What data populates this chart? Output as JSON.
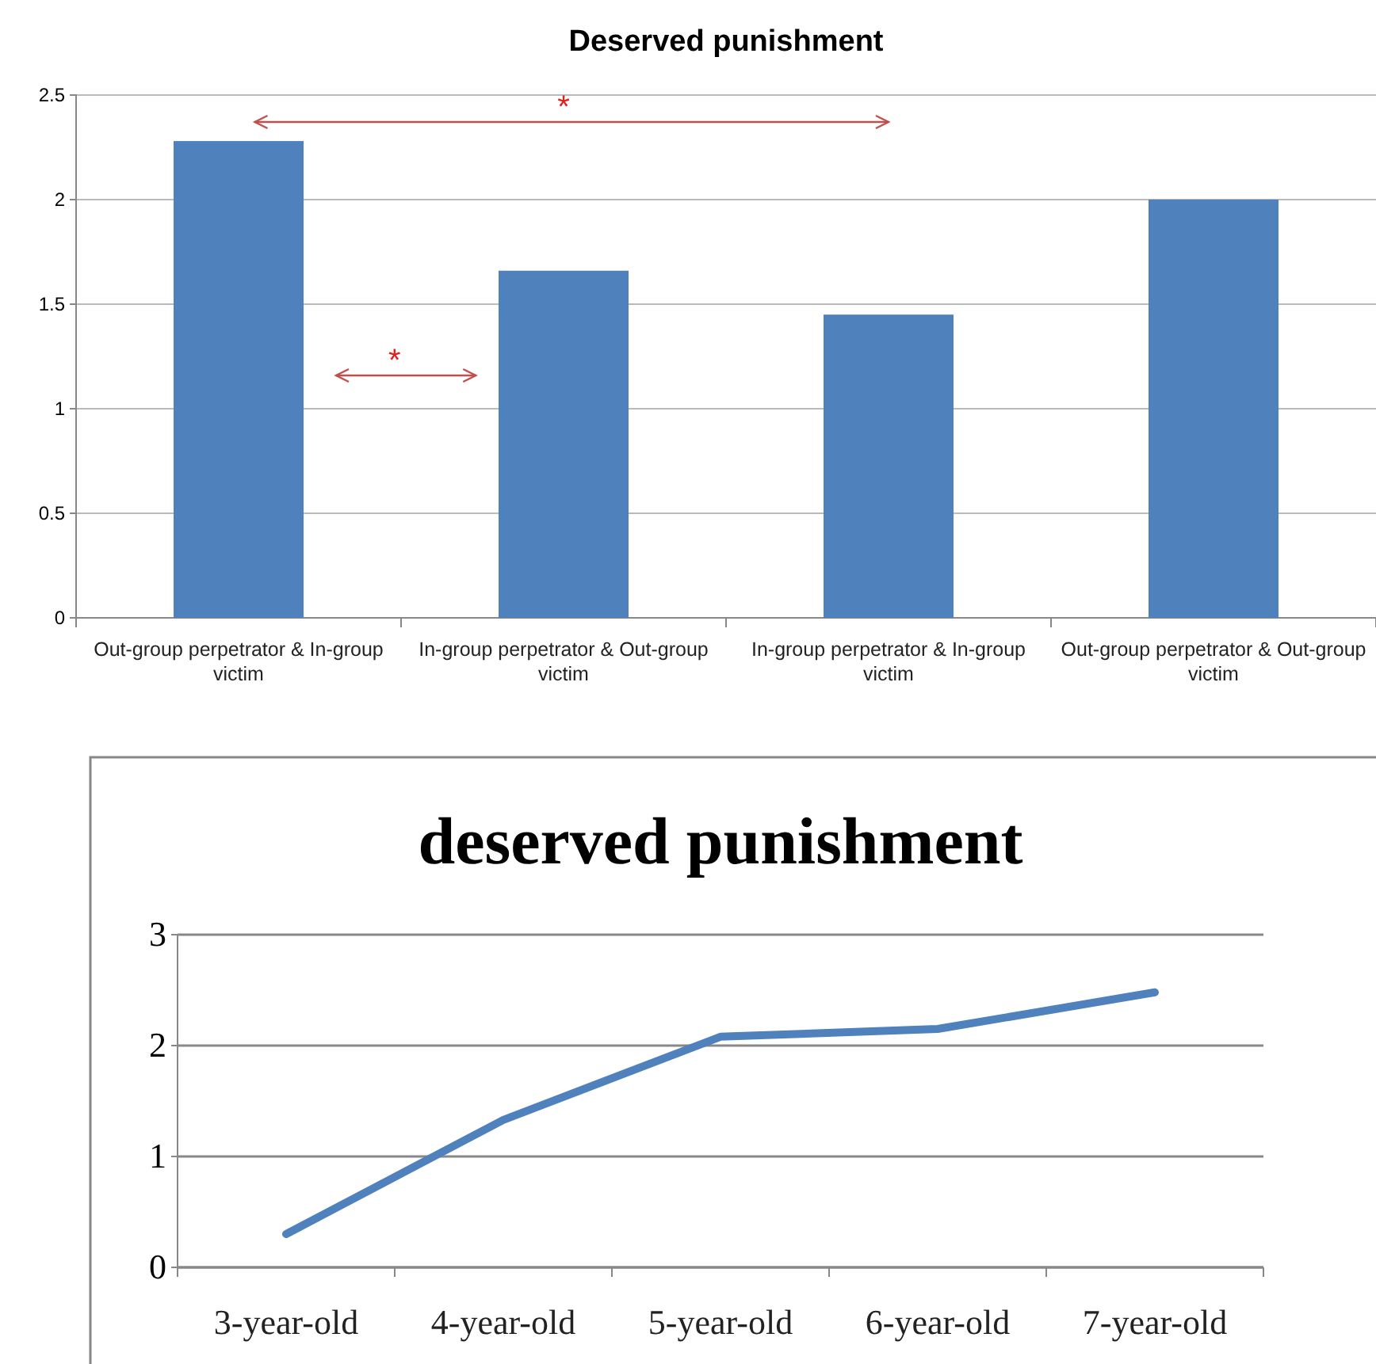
{
  "chart_data": [
    {
      "type": "bar",
      "title": "Deserved punishment",
      "categories": [
        "Out-group perpetrator & In-group victim",
        "In-group perpetrator & Out-group victim",
        "In-group perpetrator & In-group victim",
        "Out-group perpetrator & Out-group victim"
      ],
      "values": [
        2.28,
        1.66,
        1.45,
        2.0
      ],
      "color": "#4f81bd",
      "ylim": [
        0,
        2.5
      ],
      "yticks": [
        0,
        0.5,
        1,
        1.5,
        2,
        2.5
      ],
      "grid": "y",
      "annotations": [
        "*",
        "*"
      ]
    },
    {
      "type": "line",
      "title": "deserved punishment",
      "categories": [
        "3-year-old",
        "4-year-old",
        "5-year-old",
        "6-year-old",
        "7-year-old"
      ],
      "values": [
        0.3,
        1.33,
        2.08,
        2.15,
        2.48
      ],
      "color": "#4f81bd",
      "ylim": [
        0,
        3
      ],
      "yticks": [
        0,
        1,
        2,
        3
      ],
      "grid": "y",
      "marker": "none",
      "line_style": "solid"
    }
  ]
}
